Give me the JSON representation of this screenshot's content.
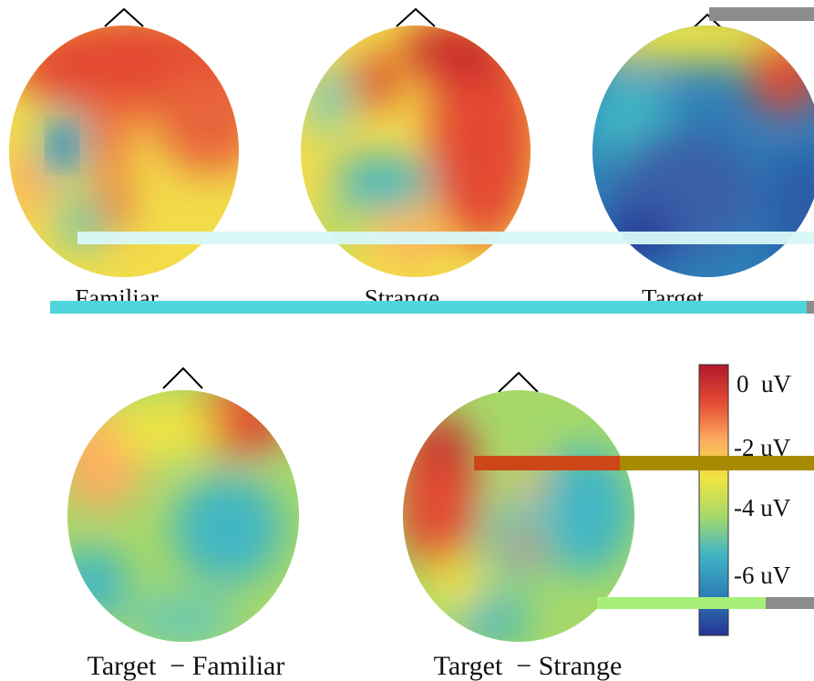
{
  "maps": [
    {
      "id": "familiar",
      "label": "Familiar"
    },
    {
      "id": "strange",
      "label": "Strange"
    },
    {
      "id": "target",
      "label": "Target"
    },
    {
      "id": "target-familiar",
      "label": "Target  − Familiar"
    },
    {
      "id": "target-strange",
      "label": "Target  − Strange"
    }
  ],
  "colorbar": {
    "ticks": [
      "0  uV",
      "-2 uV",
      "-4 uV",
      "-6 uV"
    ],
    "colors": [
      "#b2182b",
      "#e34a33",
      "#fdae61",
      "#f0e442",
      "#a6d96a",
      "#41b6c4",
      "#2c7fb8",
      "#253494"
    ]
  }
}
